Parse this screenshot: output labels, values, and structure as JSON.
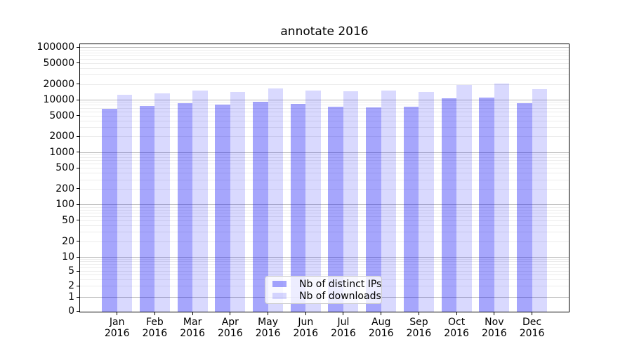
{
  "chart_data": {
    "type": "bar",
    "title": "annotate 2016",
    "x_axis": {
      "months": [
        "Jan",
        "Feb",
        "Mar",
        "Apr",
        "May",
        "Jun",
        "Jul",
        "Aug",
        "Sep",
        "Oct",
        "Nov",
        "Dec"
      ],
      "year": "2016"
    },
    "y_axis": {
      "scale": "symlog",
      "tick_values": [
        0,
        1,
        2,
        5,
        10,
        20,
        50,
        100,
        200,
        500,
        1000,
        2000,
        5000,
        10000,
        20000,
        50000,
        100000
      ],
      "range": [
        0,
        100000
      ]
    },
    "series": [
      {
        "name": "Nb of distinct IPs",
        "color": "rgba(0,0,245,0.35)",
        "values": [
          6700,
          7650,
          8500,
          8050,
          9100,
          8400,
          7400,
          7200,
          7400,
          10650,
          10900,
          8600
        ]
      },
      {
        "name": "Nb of downloads",
        "color": "rgba(0,0,245,0.15)",
        "values": [
          12400,
          13300,
          14800,
          14200,
          16500,
          14800,
          14500,
          14700,
          14000,
          19300,
          20400,
          15700
        ]
      }
    ],
    "legend": {
      "position": "lower center"
    },
    "grid": {
      "show": true,
      "major_color": "#b9b9b9",
      "minor_color": "#ececec"
    }
  }
}
